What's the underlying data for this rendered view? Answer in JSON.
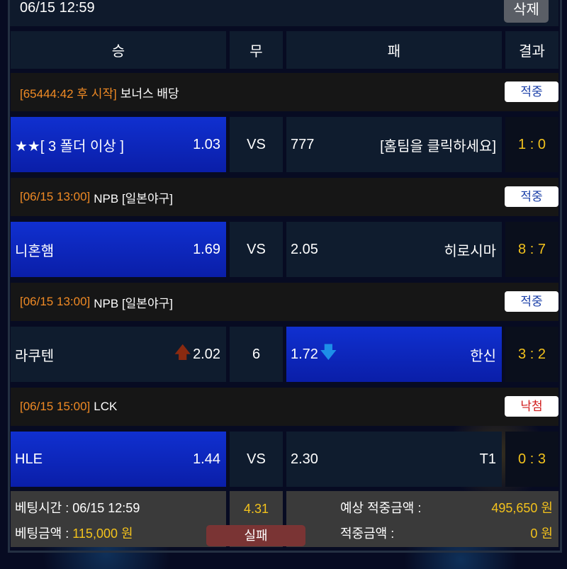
{
  "header": {
    "bet_time": "06/15 12:59",
    "delete_label": "삭제"
  },
  "columns": {
    "win": "승",
    "draw": "무",
    "lose": "패",
    "result": "결과"
  },
  "games": [
    {
      "league_time": "[65444:42 후 시작]",
      "league_name": "보너스 배당",
      "status": "적중",
      "status_type": "win",
      "home": "★★[ 3 폴더 이상 ]",
      "home_odds": "1.03",
      "draw": "VS",
      "away_odds": "777",
      "away": "[홈팀을 클릭하세요]",
      "score": "1 : 0",
      "selected": "home",
      "home_arrow": "",
      "away_arrow": ""
    },
    {
      "league_time": "[06/15 13:00]",
      "league_name": "NPB [일본야구]",
      "status": "적중",
      "status_type": "win",
      "home": "니혼햄",
      "home_odds": "1.69",
      "draw": "VS",
      "away_odds": "2.05",
      "away": "히로시마",
      "score": "8 : 7",
      "selected": "home",
      "home_arrow": "",
      "away_arrow": ""
    },
    {
      "league_time": "[06/15 13:00]",
      "league_name": "NPB [일본야구]",
      "status": "적중",
      "status_type": "win",
      "home": "라쿠텐",
      "home_odds": "2.02",
      "draw": "6",
      "away_odds": "1.72",
      "away": "한신",
      "score": "3 : 2",
      "selected": "away",
      "home_arrow": "up",
      "away_arrow": "down"
    },
    {
      "league_time": "[06/15 15:00]",
      "league_name": "LCK",
      "status": "낙첨",
      "status_type": "lose",
      "home": "HLE",
      "home_odds": "1.44",
      "draw": "VS",
      "away_odds": "2.30",
      "away": "T1",
      "score": "0 : 3",
      "selected": "home",
      "home_arrow": "",
      "away_arrow": ""
    }
  ],
  "summary": {
    "bet_time_label": "베팅시간 : 06/15 12:59",
    "bet_amount_label": "베팅금액 : ",
    "bet_amount": "115,000 원",
    "total_odds": "4.31",
    "expected_label": "예상 적중금액 :",
    "expected_amount": "495,650 원",
    "win_amount_label": "적중금액 :",
    "win_amount": "0 원",
    "result_label": "실패"
  },
  "colors": {
    "selected": "#1030d0",
    "accent": "#f3c21c",
    "league_time": "#f08a24",
    "lose": "#d01a1a",
    "win": "#1a3fa8"
  }
}
